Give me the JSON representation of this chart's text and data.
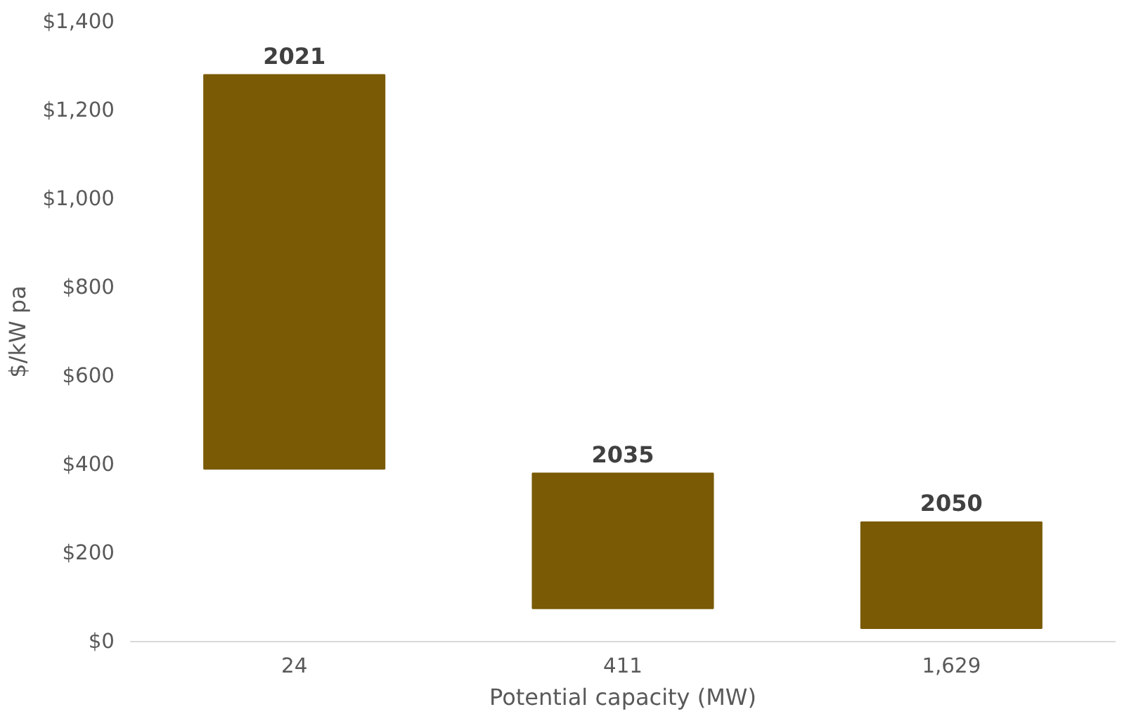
{
  "chart_data": {
    "type": "bar",
    "xlabel": "Potential capacity (MW)",
    "ylabel": "$/kW pa",
    "categories": [
      "24",
      "411",
      "1,629"
    ],
    "base": [
      390,
      75,
      30
    ],
    "values": [
      890,
      305,
      240
    ],
    "color": "#7a5a05",
    "ylim": [
      0,
      1400
    ],
    "yticks": [
      {
        "value": 0,
        "label": "$0"
      },
      {
        "value": 200,
        "label": "$200"
      },
      {
        "value": 400,
        "label": "$400"
      },
      {
        "value": 600,
        "label": "$600"
      },
      {
        "value": 800,
        "label": "$800"
      },
      {
        "value": 1000,
        "label": "$1,000"
      },
      {
        "value": 1200,
        "label": "$1,200"
      },
      {
        "value": 1400,
        "label": "$1,400"
      }
    ],
    "annotations": [
      {
        "text": "2021",
        "x": "24",
        "y": 1280
      },
      {
        "text": "2035",
        "x": "411",
        "y": 380
      },
      {
        "text": "2050",
        "x": "1,629",
        "y": 270
      }
    ],
    "grid": false
  }
}
